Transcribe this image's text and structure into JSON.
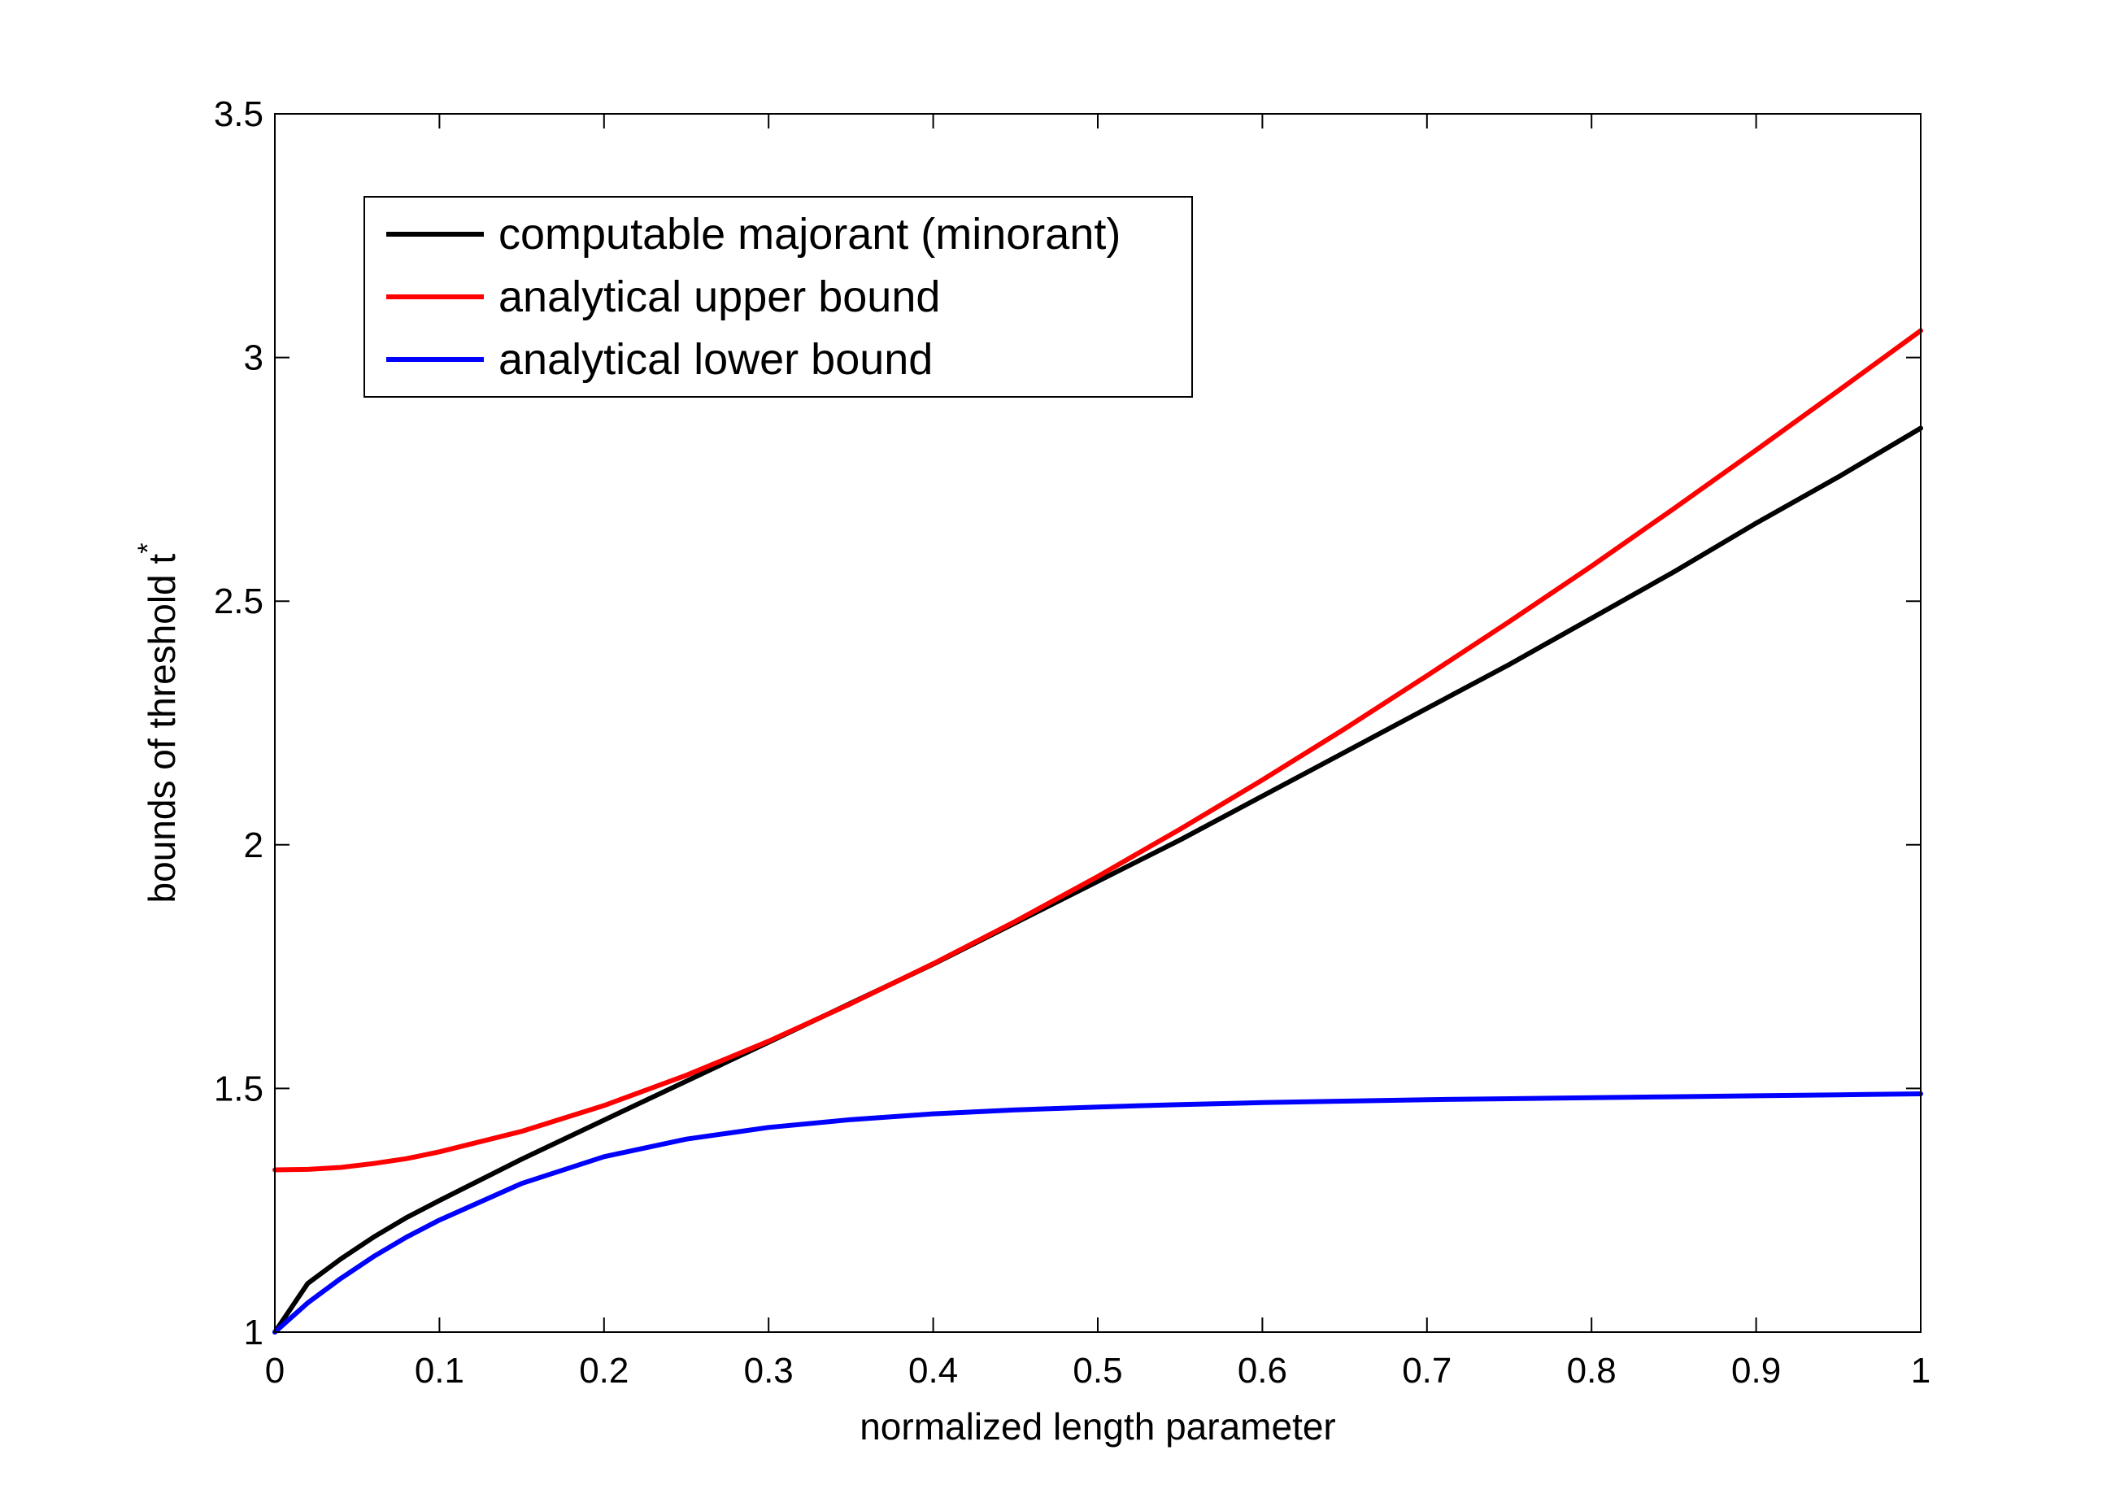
{
  "chart_data": {
    "type": "line",
    "title": "",
    "xlabel": "normalized length parameter",
    "ylabel": "bounds of threshold t",
    "ylabel_superscript": "*",
    "xlim": [
      0,
      1
    ],
    "ylim": [
      1,
      3.5
    ],
    "xticks": [
      {
        "value": 0,
        "label": "0"
      },
      {
        "value": 0.1,
        "label": "0.1"
      },
      {
        "value": 0.2,
        "label": "0.2"
      },
      {
        "value": 0.3,
        "label": "0.3"
      },
      {
        "value": 0.4,
        "label": "0.4"
      },
      {
        "value": 0.5,
        "label": "0.5"
      },
      {
        "value": 0.6,
        "label": "0.6"
      },
      {
        "value": 0.7,
        "label": "0.7"
      },
      {
        "value": 0.8,
        "label": "0.8"
      },
      {
        "value": 0.9,
        "label": "0.9"
      },
      {
        "value": 1,
        "label": "1"
      }
    ],
    "yticks": [
      {
        "value": 1,
        "label": "1"
      },
      {
        "value": 1.5,
        "label": "1.5"
      },
      {
        "value": 2,
        "label": "2"
      },
      {
        "value": 2.5,
        "label": "2.5"
      },
      {
        "value": 3,
        "label": "3"
      },
      {
        "value": 3.5,
        "label": "3.5"
      }
    ],
    "grid": false,
    "legend_position": "top-left",
    "x": [
      0,
      0.02,
      0.04,
      0.06,
      0.08,
      0.1,
      0.15,
      0.2,
      0.25,
      0.3,
      0.35,
      0.4,
      0.45,
      0.5,
      0.55,
      0.6,
      0.65,
      0.7,
      0.75,
      0.8,
      0.85,
      0.9,
      0.95,
      1.0
    ],
    "series": [
      {
        "name": "computable majorant (minorant)",
        "color": "#000000",
        "values": [
          1.0,
          1.1,
          1.15,
          1.195,
          1.235,
          1.27,
          1.355,
          1.435,
          1.515,
          1.595,
          1.675,
          1.755,
          1.84,
          1.925,
          2.01,
          2.1,
          2.19,
          2.28,
          2.37,
          2.465,
          2.56,
          2.66,
          2.755,
          2.855
        ]
      },
      {
        "name": "analytical upper bound",
        "color": "#ff0000",
        "values": [
          1.333,
          1.334,
          1.338,
          1.346,
          1.356,
          1.37,
          1.412,
          1.465,
          1.527,
          1.597,
          1.674,
          1.756,
          1.843,
          1.935,
          2.032,
          2.133,
          2.238,
          2.347,
          2.458,
          2.572,
          2.69,
          2.81,
          2.932,
          3.055
        ]
      },
      {
        "name": "analytical lower bound",
        "color": "#0000ff",
        "values": [
          1.0,
          1.06,
          1.11,
          1.155,
          1.195,
          1.23,
          1.305,
          1.36,
          1.396,
          1.42,
          1.436,
          1.448,
          1.456,
          1.462,
          1.467,
          1.471,
          1.474,
          1.477,
          1.479,
          1.481,
          1.483,
          1.485,
          1.487,
          1.489
        ]
      }
    ]
  }
}
